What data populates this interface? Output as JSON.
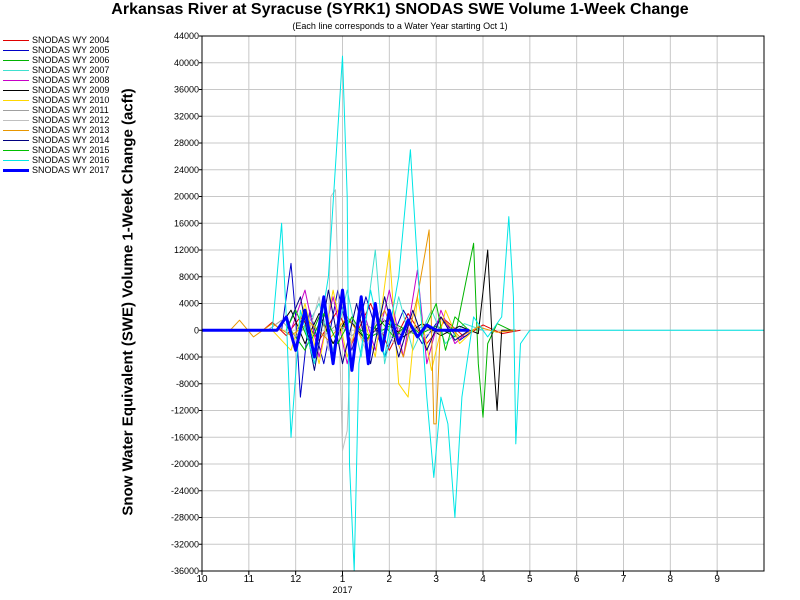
{
  "chart_data": {
    "type": "line",
    "title": "Arkansas River at Syracuse (SYRK1) SNODAS SWE Volume 1-Week Change",
    "subtitle": "(Each line corresponds to a Water Year starting Oct 1)",
    "ylabel": "Snow Water Equivalent (SWE) Volume 1-Week Change (acft)",
    "xlabel": "",
    "x_ticks": [
      "10",
      "11",
      "12",
      "1",
      "2",
      "3",
      "4",
      "5",
      "6",
      "7",
      "8",
      "9"
    ],
    "x_year_label": "2017",
    "xlim": [
      "Oct 1",
      "Oct 1"
    ],
    "ylim": [
      -36000,
      44000
    ],
    "y_ticks": [
      44000,
      40000,
      36000,
      32000,
      28000,
      24000,
      20000,
      16000,
      12000,
      8000,
      4000,
      0,
      -4000,
      -8000,
      -12000,
      -16000,
      -20000,
      -24000,
      -28000,
      -32000,
      -36000
    ],
    "grid": true,
    "legend_position": "top-left",
    "series": [
      {
        "name": "SNODAS WY 2004",
        "color": "#e00000",
        "width": 1,
        "points": [
          [
            11.3,
            0
          ],
          [
            11.5,
            1200
          ],
          [
            11.8,
            -800
          ],
          [
            12.1,
            2000
          ],
          [
            12.5,
            -1500
          ],
          [
            12.9,
            3000
          ],
          [
            1.2,
            -2000
          ],
          [
            1.6,
            4000
          ],
          [
            2.0,
            -3000
          ],
          [
            2.4,
            2500
          ],
          [
            2.8,
            -2000
          ],
          [
            3.2,
            1500
          ],
          [
            3.6,
            -1000
          ],
          [
            4.0,
            800
          ],
          [
            4.4,
            -500
          ],
          [
            4.8,
            0
          ]
        ]
      },
      {
        "name": "SNODAS WY 2005",
        "color": "#0000c8",
        "width": 1,
        "points": [
          [
            11.7,
            0
          ],
          [
            11.9,
            10000
          ],
          [
            12.0,
            2000
          ],
          [
            12.1,
            -10000
          ],
          [
            12.3,
            3000
          ],
          [
            12.6,
            -5000
          ],
          [
            12.9,
            6000
          ],
          [
            1.2,
            -3000
          ],
          [
            1.5,
            5000
          ],
          [
            1.9,
            -4000
          ],
          [
            2.3,
            3000
          ],
          [
            2.7,
            -2000
          ],
          [
            3.1,
            2000
          ],
          [
            3.5,
            -1500
          ],
          [
            3.8,
            0
          ]
        ]
      },
      {
        "name": "SNODAS WY 2006",
        "color": "#00b400",
        "width": 1,
        "points": [
          [
            11.9,
            0
          ],
          [
            12.2,
            -3000
          ],
          [
            12.5,
            2000
          ],
          [
            12.8,
            -2000
          ],
          [
            1.1,
            1500
          ],
          [
            1.6,
            -1000
          ],
          [
            2.1,
            1000
          ],
          [
            2.6,
            -800
          ],
          [
            3.0,
            600
          ],
          [
            3.4,
            -1000
          ],
          [
            3.8,
            13000
          ],
          [
            3.9,
            -5000
          ],
          [
            4.0,
            -13000
          ],
          [
            4.1,
            -2000
          ],
          [
            4.3,
            1000
          ],
          [
            4.6,
            0
          ]
        ]
      },
      {
        "name": "SNODAS WY 2007",
        "color": "#40e0d0",
        "width": 1,
        "points": [
          [
            12.2,
            0
          ],
          [
            12.5,
            4000
          ],
          [
            12.8,
            -3000
          ],
          [
            1.1,
            6000
          ],
          [
            1.4,
            -4000
          ],
          [
            1.7,
            12000
          ],
          [
            1.9,
            -5000
          ],
          [
            2.2,
            5000
          ],
          [
            2.5,
            -3000
          ],
          [
            2.9,
            3000
          ],
          [
            3.2,
            -2000
          ],
          [
            3.6,
            1000
          ],
          [
            4.0,
            0
          ]
        ]
      },
      {
        "name": "SNODAS WY 2008",
        "color": "#c800c8",
        "width": 1,
        "points": [
          [
            11.9,
            0
          ],
          [
            12.2,
            6000
          ],
          [
            12.5,
            -4000
          ],
          [
            12.8,
            5000
          ],
          [
            1.1,
            -5000
          ],
          [
            1.4,
            4000
          ],
          [
            1.7,
            -3000
          ],
          [
            2.0,
            6000
          ],
          [
            2.3,
            -4000
          ],
          [
            2.6,
            9000
          ],
          [
            2.8,
            -5000
          ],
          [
            3.1,
            3000
          ],
          [
            3.4,
            -2000
          ],
          [
            3.7,
            0
          ]
        ]
      },
      {
        "name": "SNODAS WY 2009",
        "color": "#000000",
        "width": 1,
        "points": [
          [
            11.6,
            0
          ],
          [
            11.9,
            3000
          ],
          [
            12.2,
            -2000
          ],
          [
            12.5,
            2500
          ],
          [
            12.8,
            -2000
          ],
          [
            1.1,
            2000
          ],
          [
            1.5,
            -1500
          ],
          [
            1.9,
            1500
          ],
          [
            2.3,
            -1000
          ],
          [
            2.7,
            1000
          ],
          [
            3.1,
            -800
          ],
          [
            3.5,
            600
          ],
          [
            3.9,
            -500
          ],
          [
            4.1,
            12000
          ],
          [
            4.2,
            -2000
          ],
          [
            4.3,
            -12000
          ],
          [
            4.4,
            0
          ],
          [
            4.7,
            0
          ]
        ]
      },
      {
        "name": "SNODAS WY 2010",
        "color": "#ffd700",
        "width": 1,
        "points": [
          [
            11.5,
            0
          ],
          [
            11.9,
            -3000
          ],
          [
            12.2,
            4000
          ],
          [
            12.5,
            -5000
          ],
          [
            12.8,
            6000
          ],
          [
            1.1,
            -4000
          ],
          [
            1.4,
            3000
          ],
          [
            1.7,
            -4000
          ],
          [
            2.0,
            12000
          ],
          [
            2.2,
            -8000
          ],
          [
            2.4,
            -10000
          ],
          [
            2.6,
            5000
          ],
          [
            2.9,
            -6000
          ],
          [
            3.2,
            3000
          ],
          [
            3.5,
            -2000
          ],
          [
            3.8,
            0
          ]
        ]
      },
      {
        "name": "SNODAS WY 2011",
        "color": "#a0a0a0",
        "width": 1,
        "points": [
          [
            11.4,
            0
          ],
          [
            11.7,
            1500
          ],
          [
            12.0,
            -1000
          ],
          [
            12.3,
            1200
          ],
          [
            12.6,
            -900
          ],
          [
            12.9,
            1000
          ],
          [
            1.2,
            -800
          ],
          [
            1.5,
            900
          ],
          [
            1.8,
            -700
          ],
          [
            2.1,
            800
          ],
          [
            2.4,
            -600
          ],
          [
            2.7,
            500
          ],
          [
            3.0,
            -400
          ],
          [
            3.3,
            300
          ],
          [
            3.6,
            0
          ]
        ]
      },
      {
        "name": "SNODAS WY 2012",
        "color": "#c0c0c0",
        "width": 1,
        "points": [
          [
            12.3,
            0
          ],
          [
            12.5,
            5000
          ],
          [
            12.7,
            -3000
          ],
          [
            12.75,
            20000
          ],
          [
            12.85,
            21000
          ],
          [
            12.95,
            -5000
          ],
          [
            1.0,
            -18000
          ],
          [
            1.1,
            -15000
          ],
          [
            1.2,
            2000
          ],
          [
            1.5,
            -3000
          ],
          [
            1.8,
            3000
          ],
          [
            2.1,
            -2000
          ],
          [
            2.4,
            1500
          ],
          [
            2.7,
            -1000
          ],
          [
            3.0,
            0
          ]
        ]
      },
      {
        "name": "SNODAS WY 2013",
        "color": "#e89600",
        "width": 1,
        "points": [
          [
            10.6,
            0
          ],
          [
            10.8,
            1500
          ],
          [
            11.1,
            -1000
          ],
          [
            11.5,
            1000
          ],
          [
            11.9,
            -800
          ],
          [
            12.3,
            1200
          ],
          [
            12.7,
            -1500
          ],
          [
            1.1,
            2000
          ],
          [
            1.5,
            -2000
          ],
          [
            1.9,
            3000
          ],
          [
            2.3,
            -4000
          ],
          [
            2.6,
            5000
          ],
          [
            2.85,
            15000
          ],
          [
            2.95,
            -14000
          ],
          [
            3.0,
            -14000
          ],
          [
            3.1,
            2000
          ],
          [
            3.5,
            -1000
          ],
          [
            3.9,
            500
          ],
          [
            4.3,
            -300
          ],
          [
            4.7,
            0
          ]
        ]
      },
      {
        "name": "SNODAS WY 2014",
        "color": "#000080",
        "width": 1,
        "points": [
          [
            11.8,
            0
          ],
          [
            12.1,
            5000
          ],
          [
            12.4,
            -6000
          ],
          [
            12.7,
            6000
          ],
          [
            1.0,
            -5000
          ],
          [
            1.3,
            4000
          ],
          [
            1.6,
            -5000
          ],
          [
            1.9,
            5000
          ],
          [
            2.2,
            -4000
          ],
          [
            2.5,
            3000
          ],
          [
            2.8,
            -3000
          ],
          [
            3.1,
            2000
          ],
          [
            3.4,
            -1500
          ],
          [
            3.7,
            0
          ]
        ]
      },
      {
        "name": "SNODAS WY 2015",
        "color": "#00c000",
        "width": 1,
        "points": [
          [
            11.8,
            0
          ],
          [
            12.0,
            3000
          ],
          [
            12.3,
            -2000
          ],
          [
            12.6,
            2500
          ],
          [
            12.9,
            -2000
          ],
          [
            1.2,
            2000
          ],
          [
            1.5,
            -1500
          ],
          [
            1.8,
            1500
          ],
          [
            2.1,
            -1000
          ],
          [
            2.4,
            1000
          ],
          [
            2.7,
            -800
          ],
          [
            3.0,
            4000
          ],
          [
            3.2,
            -3000
          ],
          [
            3.4,
            2000
          ],
          [
            3.7,
            0
          ]
        ]
      },
      {
        "name": "SNODAS WY 2016",
        "color": "#00e6e6",
        "width": 1,
        "points": [
          [
            11.5,
            0
          ],
          [
            11.7,
            16000
          ],
          [
            11.8,
            2000
          ],
          [
            11.9,
            -16000
          ],
          [
            12.1,
            3000
          ],
          [
            12.4,
            -5000
          ],
          [
            12.7,
            8000
          ],
          [
            12.9,
            30000
          ],
          [
            1.0,
            41000
          ],
          [
            1.1,
            20000
          ],
          [
            1.15,
            -20000
          ],
          [
            1.25,
            -36000
          ],
          [
            1.35,
            -5000
          ],
          [
            1.6,
            6000
          ],
          [
            1.9,
            -4000
          ],
          [
            2.2,
            8000
          ],
          [
            2.45,
            27000
          ],
          [
            2.6,
            10000
          ],
          [
            2.8,
            -10000
          ],
          [
            2.95,
            -22000
          ],
          [
            3.1,
            -10000
          ],
          [
            3.25,
            -14000
          ],
          [
            3.4,
            -28000
          ],
          [
            3.55,
            -10000
          ],
          [
            3.8,
            2000
          ],
          [
            4.1,
            -1000
          ],
          [
            4.4,
            2000
          ],
          [
            4.55,
            17000
          ],
          [
            4.65,
            5000
          ],
          [
            4.7,
            -17000
          ],
          [
            4.8,
            -2000
          ],
          [
            5.0,
            0
          ],
          [
            9.99,
            0
          ]
        ]
      },
      {
        "name": "SNODAS WY 2017",
        "color": "#0000ff",
        "width": 3,
        "points": [
          [
            10.0,
            0
          ],
          [
            11.6,
            0
          ],
          [
            11.8,
            2000
          ],
          [
            12.0,
            -3000
          ],
          [
            12.2,
            3000
          ],
          [
            12.4,
            -4000
          ],
          [
            12.6,
            5000
          ],
          [
            12.8,
            -5000
          ],
          [
            1.0,
            6000
          ],
          [
            1.2,
            -6000
          ],
          [
            1.4,
            5000
          ],
          [
            1.55,
            -5000
          ],
          [
            1.7,
            4000
          ],
          [
            1.85,
            -3000
          ],
          [
            2.0,
            3000
          ],
          [
            2.2,
            -2000
          ],
          [
            2.4,
            1500
          ],
          [
            2.6,
            -1000
          ],
          [
            2.8,
            800
          ],
          [
            3.0,
            0
          ],
          [
            3.7,
            0
          ]
        ]
      }
    ]
  }
}
